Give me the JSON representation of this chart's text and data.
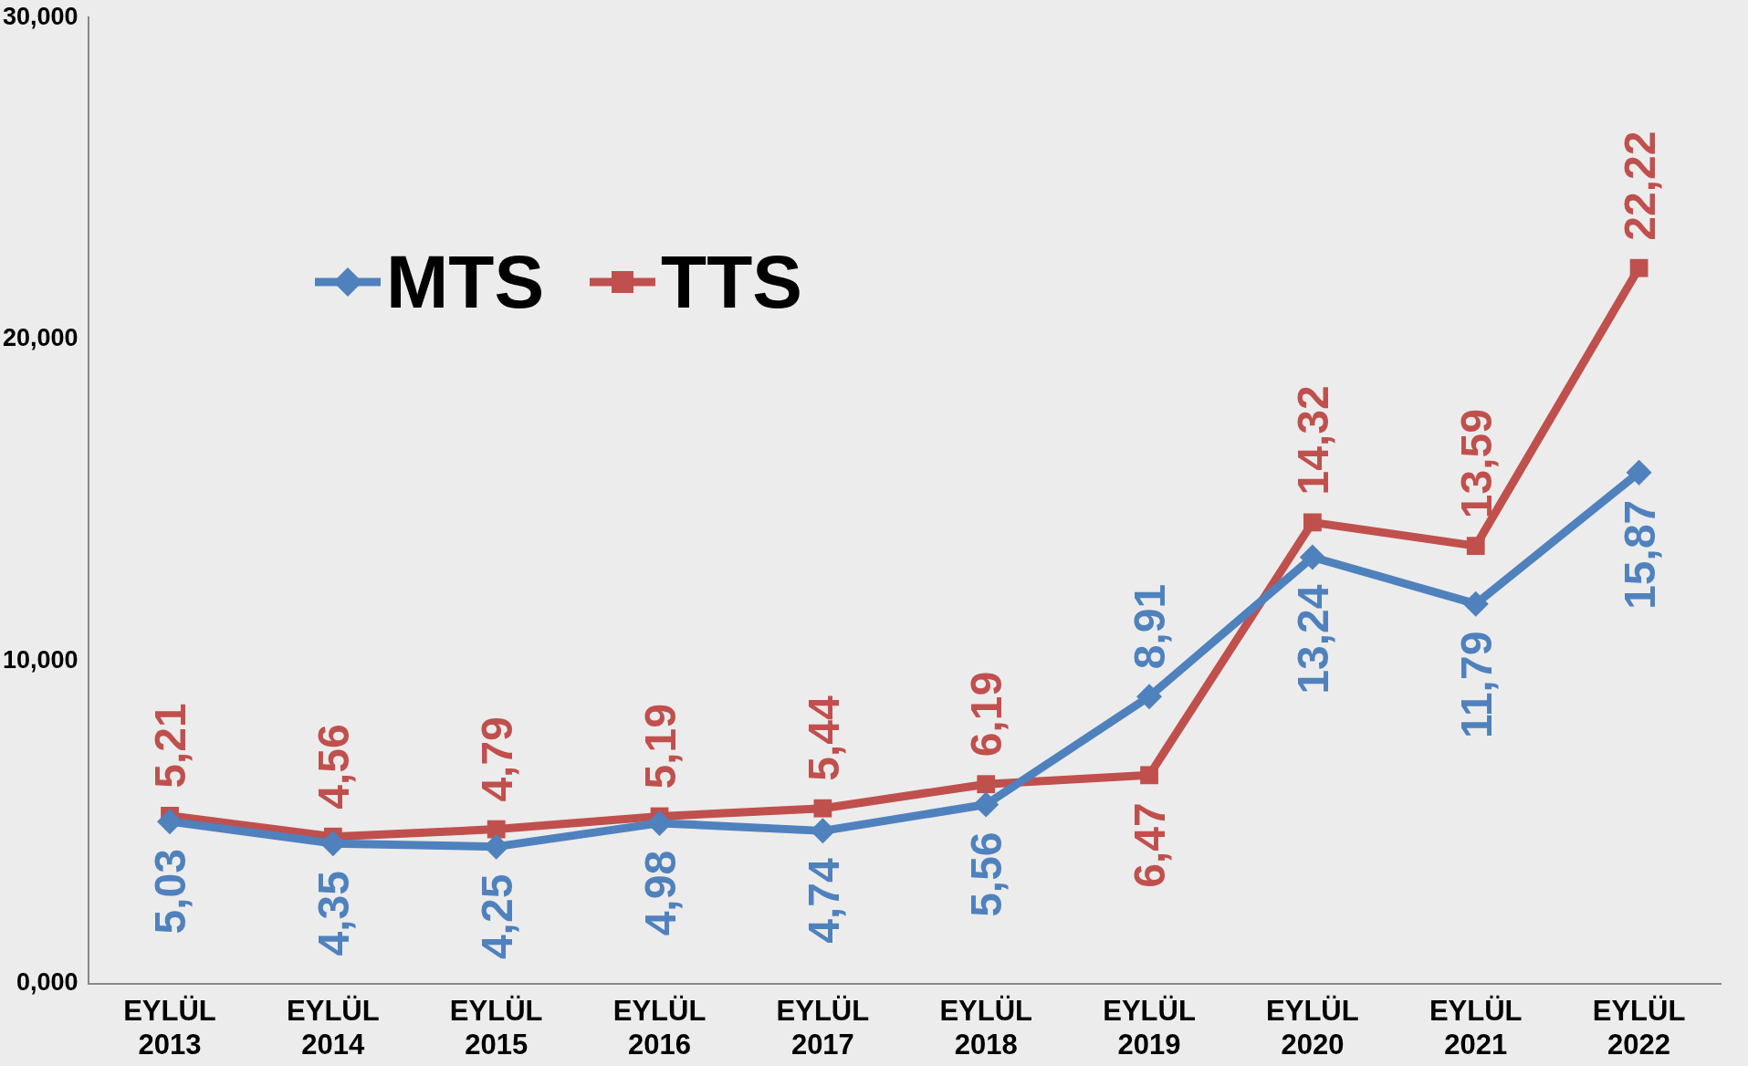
{
  "chart_data": {
    "type": "line",
    "categories": [
      "EYLÜL 2013",
      "EYLÜL 2014",
      "EYLÜL 2015",
      "EYLÜL 2016",
      "EYLÜL 2017",
      "EYLÜL 2018",
      "EYLÜL 2019",
      "EYLÜL 2020",
      "EYLÜL 2021",
      "EYLÜL 2022"
    ],
    "series": [
      {
        "name": "MTS",
        "color": "#4f81bd",
        "marker": "diamond",
        "values": [
          5.03,
          4.35,
          4.25,
          4.98,
          4.74,
          5.56,
          8.91,
          13.24,
          11.79,
          15.87
        ],
        "value_labels": [
          "5,03",
          "4,35",
          "4,25",
          "4,98",
          "4,74",
          "5,56",
          "8,91",
          "13,24",
          "11,79",
          "15,87"
        ]
      },
      {
        "name": "TTS",
        "color": "#c0504d",
        "marker": "square",
        "values": [
          5.21,
          4.56,
          4.79,
          5.19,
          5.44,
          6.19,
          6.47,
          14.32,
          13.59,
          22.22
        ],
        "value_labels": [
          "5,21",
          "4,56",
          "4,79",
          "5,19",
          "5,44",
          "6,19",
          "6,47",
          "14,32",
          "13,59",
          "22,22"
        ]
      }
    ],
    "ylim": [
      0,
      30
    ],
    "yticks": [
      {
        "value": 0,
        "label": "0,000"
      },
      {
        "value": 10,
        "label": "10,000"
      },
      {
        "value": 20,
        "label": "20,000"
      },
      {
        "value": 30,
        "label": "30,000"
      }
    ],
    "grid": false,
    "legend": "top left",
    "line_style": "solid"
  }
}
